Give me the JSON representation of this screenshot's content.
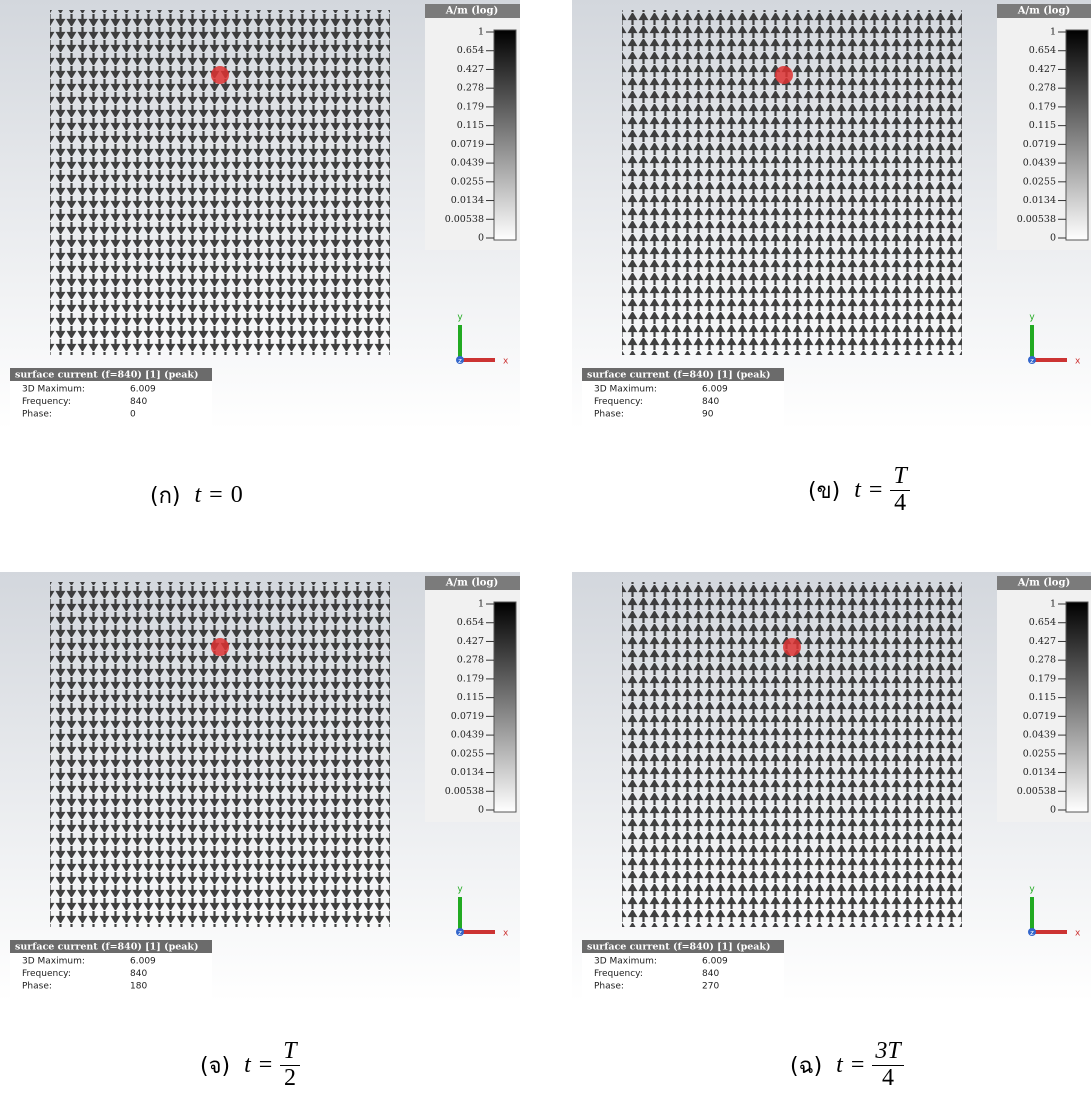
{
  "panels": [
    {
      "legend": {
        "title": "A/m (log)",
        "ticks": [
          "1",
          "0.654",
          "0.427",
          "0.278",
          "0.179",
          "0.115",
          "0.0719",
          "0.0439",
          "0.0255",
          "0.0134",
          "0.00538",
          "0"
        ]
      },
      "axes": [
        "x",
        "y",
        "z"
      ],
      "info": {
        "title": "surface current (f=840) [1] (peak)",
        "rows": [
          [
            "3D Maximum:",
            "6.009"
          ],
          [
            "Frequency:",
            "840"
          ],
          [
            "Phase:",
            "0"
          ]
        ]
      },
      "caption": {
        "label": "(ก)",
        "lhs": "t",
        "eq": "=",
        "rhs": "0"
      }
    },
    {
      "legend": {
        "title": "A/m (log)",
        "ticks": [
          "1",
          "0.654",
          "0.427",
          "0.278",
          "0.179",
          "0.115",
          "0.0719",
          "0.0439",
          "0.0255",
          "0.0134",
          "0.00538",
          "0"
        ]
      },
      "axes": [
        "x",
        "y",
        "z"
      ],
      "info": {
        "title": "surface current (f=840) [1] (peak)",
        "rows": [
          [
            "3D Maximum:",
            "6.009"
          ],
          [
            "Frequency:",
            "840"
          ],
          [
            "Phase:",
            "90"
          ]
        ]
      },
      "caption": {
        "label": "(ข)",
        "lhs": "t",
        "eq": "=",
        "numerator": "T",
        "denominator": "4"
      }
    },
    {
      "legend": {
        "title": "A/m (log)",
        "ticks": [
          "1",
          "0.654",
          "0.427",
          "0.278",
          "0.179",
          "0.115",
          "0.0719",
          "0.0439",
          "0.0255",
          "0.0134",
          "0.00538",
          "0"
        ]
      },
      "axes": [
        "x",
        "y",
        "z"
      ],
      "info": {
        "title": "surface current (f=840) [1] (peak)",
        "rows": [
          [
            "3D Maximum:",
            "6.009"
          ],
          [
            "Frequency:",
            "840"
          ],
          [
            "Phase:",
            "180"
          ]
        ]
      },
      "caption": {
        "label": "(จ)",
        "lhs": "t",
        "eq": "=",
        "numerator": "T",
        "denominator": "2"
      }
    },
    {
      "legend": {
        "title": "A/m (log)",
        "ticks": [
          "1",
          "0.654",
          "0.427",
          "0.278",
          "0.179",
          "0.115",
          "0.0719",
          "0.0439",
          "0.0255",
          "0.0134",
          "0.00538",
          "0"
        ]
      },
      "axes": [
        "x",
        "y",
        "z"
      ],
      "info": {
        "title": "surface current (f=840) [1] (peak)",
        "rows": [
          [
            "3D Maximum:",
            "6.009"
          ],
          [
            "Frequency:",
            "840"
          ],
          [
            "Phase:",
            "270"
          ]
        ]
      },
      "caption": {
        "label": "(ฉ)",
        "lhs": "t",
        "eq": "=",
        "numerator": "3T",
        "denominator": "4"
      }
    }
  ]
}
